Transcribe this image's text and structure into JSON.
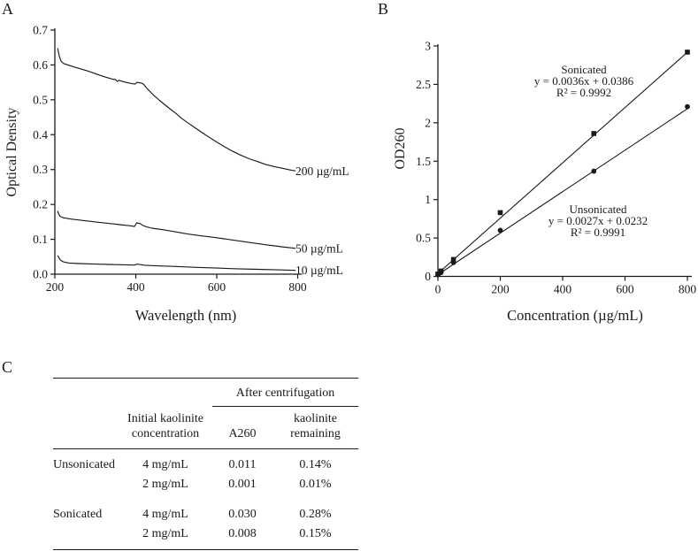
{
  "figure": {
    "background": "#ffffff",
    "ink": "#1a1a1a"
  },
  "panels": {
    "a": "A",
    "b": "B",
    "c": "C"
  },
  "chart_data": [
    {
      "panel": "A",
      "type": "line",
      "title": "",
      "xlabel": "Wavelength (nm)",
      "ylabel": "Optical Density",
      "xlim": [
        200,
        800
      ],
      "ylim": [
        0,
        0.7
      ],
      "grid": false,
      "xticks": {
        "values": [
          200,
          400,
          600,
          800
        ],
        "labels": [
          "200",
          "400",
          "600",
          "800"
        ]
      },
      "yticks": {
        "values": [
          0,
          0.1,
          0.2,
          0.3,
          0.4,
          0.5,
          0.6,
          0.7
        ],
        "labels": [
          "0.0",
          "0.1",
          "0.2",
          "0.3",
          "0.4",
          "0.5",
          "0.6",
          "0.7"
        ]
      },
      "series": [
        {
          "name": "200 µg/mL",
          "points": [
            [
              207,
              0.648
            ],
            [
              209,
              0.636
            ],
            [
              212,
              0.621
            ],
            [
              216,
              0.61
            ],
            [
              222,
              0.604
            ],
            [
              240,
              0.597
            ],
            [
              260,
              0.59
            ],
            [
              280,
              0.583
            ],
            [
              300,
              0.575
            ],
            [
              320,
              0.567
            ],
            [
              340,
              0.56
            ],
            [
              350,
              0.558
            ],
            [
              354,
              0.553
            ],
            [
              358,
              0.556
            ],
            [
              372,
              0.551
            ],
            [
              388,
              0.547
            ],
            [
              398,
              0.545
            ],
            [
              403,
              0.55
            ],
            [
              414,
              0.548
            ],
            [
              420,
              0.544
            ],
            [
              426,
              0.535
            ],
            [
              434,
              0.525
            ],
            [
              445,
              0.512
            ],
            [
              460,
              0.497
            ],
            [
              480,
              0.478
            ],
            [
              500,
              0.46
            ],
            [
              513,
              0.447
            ],
            [
              530,
              0.433
            ],
            [
              550,
              0.417
            ],
            [
              570,
              0.401
            ],
            [
              585,
              0.39
            ],
            [
              600,
              0.379
            ],
            [
              620,
              0.365
            ],
            [
              640,
              0.352
            ],
            [
              658,
              0.342
            ],
            [
              680,
              0.331
            ],
            [
              700,
              0.323
            ],
            [
              720,
              0.315
            ],
            [
              740,
              0.309
            ],
            [
              760,
              0.304
            ],
            [
              780,
              0.299
            ],
            [
              795,
              0.296
            ]
          ]
        },
        {
          "name": "50 µg/mL",
          "points": [
            [
              207,
              0.181
            ],
            [
              209,
              0.174
            ],
            [
              213,
              0.166
            ],
            [
              220,
              0.162
            ],
            [
              240,
              0.158
            ],
            [
              270,
              0.154
            ],
            [
              300,
              0.15
            ],
            [
              330,
              0.146
            ],
            [
              360,
              0.142
            ],
            [
              385,
              0.139
            ],
            [
              397,
              0.137
            ],
            [
              402,
              0.147
            ],
            [
              411,
              0.145
            ],
            [
              417,
              0.14
            ],
            [
              426,
              0.136
            ],
            [
              440,
              0.132
            ],
            [
              470,
              0.127
            ],
            [
              500,
              0.121
            ],
            [
              530,
              0.115
            ],
            [
              560,
              0.11
            ],
            [
              596,
              0.105
            ],
            [
              640,
              0.098
            ],
            [
              680,
              0.091
            ],
            [
              720,
              0.0845
            ],
            [
              760,
              0.0785
            ],
            [
              795,
              0.074
            ]
          ]
        },
        {
          "name": "10 µg/mL",
          "points": [
            [
              207,
              0.054
            ],
            [
              210,
              0.047
            ],
            [
              214,
              0.04
            ],
            [
              222,
              0.035
            ],
            [
              235,
              0.032
            ],
            [
              260,
              0.0305
            ],
            [
              300,
              0.029
            ],
            [
              350,
              0.0275
            ],
            [
              397,
              0.026
            ],
            [
              403,
              0.029
            ],
            [
              412,
              0.0275
            ],
            [
              422,
              0.0255
            ],
            [
              460,
              0.0235
            ],
            [
              500,
              0.022
            ],
            [
              550,
              0.0195
            ],
            [
              600,
              0.0175
            ],
            [
              650,
              0.0155
            ],
            [
              700,
              0.014
            ],
            [
              750,
              0.0125
            ],
            [
              795,
              0.011
            ]
          ]
        }
      ]
    },
    {
      "panel": "B",
      "type": "scatter",
      "title": "",
      "xlabel": "Concentration (µg/mL)",
      "ylabel": "OD260",
      "xlim": [
        0,
        800
      ],
      "ylim": [
        0,
        3
      ],
      "grid": false,
      "xticks": {
        "values": [
          0,
          200,
          400,
          600,
          800
        ],
        "labels": [
          "0",
          "200",
          "400",
          "600",
          "800"
        ]
      },
      "yticks": {
        "values": [
          0,
          0.5,
          1,
          1.5,
          2,
          2.5,
          3
        ],
        "labels": [
          "0",
          "0.5",
          "1",
          "1.5",
          "2",
          "2.5",
          "3"
        ]
      },
      "x": [
        0,
        10,
        50,
        200,
        500,
        800
      ],
      "series": [
        {
          "name": "Sonicated",
          "marker": "square",
          "values": [
            0.03,
            0.07,
            0.22,
            0.83,
            1.86,
            2.92
          ],
          "trendline": {
            "slope": 0.0036,
            "intercept": 0.0386
          },
          "annotation": [
            "Sonicated",
            "y = 0.0036x + 0.0386",
            "R² = 0.9992"
          ]
        },
        {
          "name": "Unsonicated",
          "marker": "circle",
          "values": [
            0.02,
            0.05,
            0.18,
            0.6,
            1.37,
            2.21
          ],
          "trendline": {
            "slope": 0.0027,
            "intercept": 0.0232
          },
          "annotation": [
            "Unsonicated",
            "y = 0.0027x + 0.0232",
            "R² = 0.9991"
          ]
        }
      ]
    },
    {
      "panel": "C",
      "type": "table",
      "span_header": "After centrifugation",
      "columns": [
        "",
        "Initial kaolinite concentration",
        "A260",
        "kaolinite remaining"
      ],
      "rows": [
        [
          "Unsonicated",
          "4 mg/mL",
          "0.011",
          "0.14%"
        ],
        [
          "",
          "2 mg/mL",
          "0.001",
          "0.01%"
        ],
        [
          "Sonicated",
          "4 mg/mL",
          "0.030",
          "0.28%"
        ],
        [
          "",
          "2 mg/mL",
          "0.008",
          "0.15%"
        ]
      ]
    }
  ]
}
